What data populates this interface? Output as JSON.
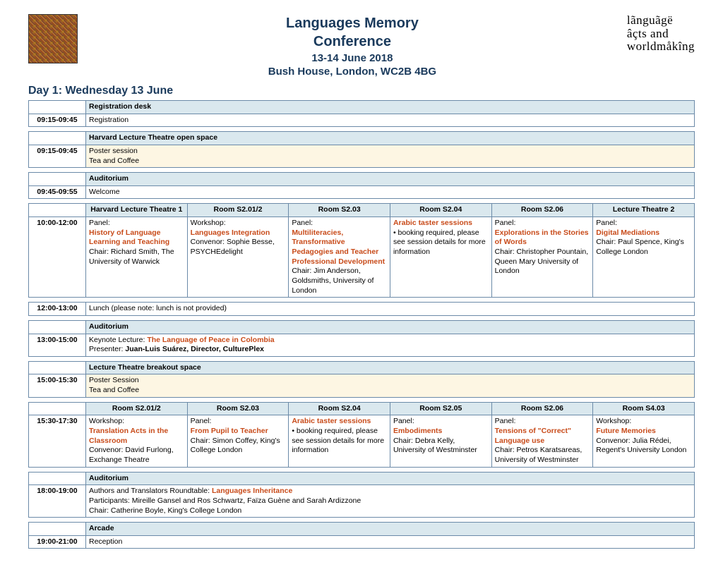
{
  "header": {
    "title_line1": "Languages Memory",
    "title_line2": "Conference",
    "dates": "13-14 June 2018",
    "venue": "Bush House, London, WC2B 4BG",
    "right_logo_l1": "lãnguãgë",
    "right_logo_l2": "âçts and",
    "right_logo_l3": "worldmåkîng"
  },
  "day_title": "Day 1: Wednesday 13 June",
  "block1": {
    "venue": "Registration desk",
    "time": "09:15-09:45",
    "text": "Registration"
  },
  "block2": {
    "venue": "Harvard Lecture Theatre open space",
    "time": "09:15-09:45",
    "text1": "Poster session",
    "text2": "Tea and Coffee"
  },
  "block3": {
    "venue": "Auditorium",
    "time": "09:45-09:55",
    "text": "Welcome"
  },
  "grid1": {
    "time": "10:00-12:00",
    "rooms": [
      "Harvard Lecture Theatre 1",
      "Room S2.01/2",
      "Room S2.03",
      "Room S2.04",
      "Room S2.06",
      "Lecture Theatre 2"
    ],
    "c1_pre": "Panel:",
    "c1_hl": "History of Language Learning and Teaching",
    "c1_post": "Chair: Richard Smith, The University of Warwick",
    "c2_pre": "Workshop:",
    "c2_hl": "Languages Integration",
    "c2_post": "Convenor: Sophie Besse, PSYCHEdelight",
    "c3_pre": "Panel:",
    "c3_hl": "Multiliteracies, Transformative Pedagogies and Teacher Professional Development",
    "c3_post": "Chair: Jim Anderson, Goldsmiths, University of London",
    "c4_hl": "Arabic taster sessions",
    "c4_post": "• booking required, please see session details for more information",
    "c5_pre": "Panel:",
    "c5_hl": "Explorations in the Stories of Words",
    "c5_post": "Chair: Christopher Pountain, Queen Mary University of London",
    "c6_pre": "Panel:",
    "c6_hl": "Digital Mediations",
    "c6_post": "Chair: Paul Spence, King's College London"
  },
  "lunch": {
    "time": "12:00-13:00",
    "text": "Lunch (please note: lunch is not provided)"
  },
  "block4": {
    "venue": "Auditorium",
    "time": "13:00-15:00",
    "pre": "Keynote Lecture: ",
    "hl": "The Language of Peace in Colombia",
    "line2_pre": "Presenter: ",
    "line2_b": "Juan-Luis Suárez, Director, CulturePlex"
  },
  "block5": {
    "venue": "Lecture Theatre breakout space",
    "time": "15:00-15:30",
    "text1": "Poster Session",
    "text2": "Tea and Coffee"
  },
  "grid2": {
    "time": "15:30-17:30",
    "rooms": [
      "Room S2.01/2",
      "Room S2.03",
      "Room S2.04",
      "Room S2.05",
      "Room S2.06",
      "Room S4.03"
    ],
    "c1_pre": "Workshop:",
    "c1_hl": "Translation Acts in the Classroom",
    "c1_post": "Convenor: David Furlong, Exchange Theatre",
    "c2_pre": "Panel:",
    "c2_hl": "From Pupil to Teacher",
    "c2_post": "Chair: Simon Coffey, King's College London",
    "c3_hl": "Arabic taster sessions",
    "c3_post": "• booking required, please see session details for more information",
    "c4_pre": "Panel:",
    "c4_hl": "Embodiments",
    "c4_post": "Chair: Debra Kelly, University of Westminster",
    "c5_pre": "Panel:",
    "c5_hl": "Tensions of \"Correct\" Language use",
    "c5_post": "Chair: Petros Karatsareas, University of Westminster",
    "c6_pre": "Workshop:",
    "c6_hl": "Future Memories",
    "c6_post": "Convenor: Julia Rédei, Regent's University London"
  },
  "block6": {
    "venue": "Auditorium",
    "time": "18:00-19:00",
    "pre": "Authors and Translators Roundtable: ",
    "hl": "Languages Inheritance",
    "line2": "Participants: Mireille Gansel and Ros Schwartz, Faïza Guène and Sarah Ardizzone",
    "line3": "Chair: Catherine Boyle, King's College London"
  },
  "block7": {
    "venue": "Arcade",
    "time": "19:00-21:00",
    "text": "Reception"
  }
}
